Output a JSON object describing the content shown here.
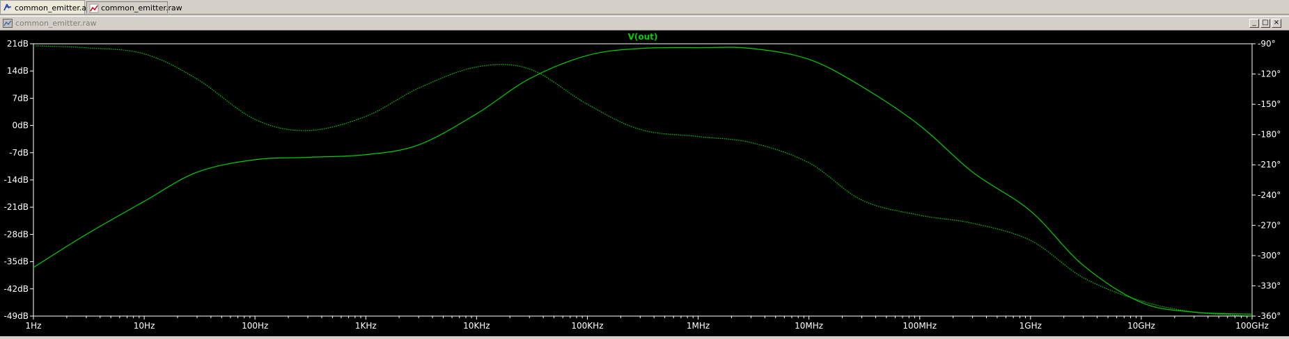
{
  "tabs": [
    {
      "label": "common_emitter.asc",
      "icon": "schematic-icon",
      "active": true
    },
    {
      "label": "common_emitter.raw",
      "icon": "waveform-icon",
      "active": false
    }
  ],
  "window": {
    "title": "common_emitter.raw",
    "minimize": "_",
    "restore": "□",
    "close": "×"
  },
  "colors": {
    "trace": "#00d000",
    "background": "#000000",
    "axis": "#ffffff",
    "title": "#00d000"
  },
  "chart_data": {
    "type": "line",
    "title": "V(out)",
    "x_scale": "log",
    "xlim": [
      1,
      100000000000
    ],
    "x_ticks": [
      {
        "value": 1,
        "label": "1Hz"
      },
      {
        "value": 10,
        "label": "10Hz"
      },
      {
        "value": 100,
        "label": "100Hz"
      },
      {
        "value": 1000,
        "label": "1KHz"
      },
      {
        "value": 10000,
        "label": "10KHz"
      },
      {
        "value": 100000,
        "label": "100KHz"
      },
      {
        "value": 1000000,
        "label": "1MHz"
      },
      {
        "value": 10000000,
        "label": "10MHz"
      },
      {
        "value": 100000000,
        "label": "100MHz"
      },
      {
        "value": 1000000000,
        "label": "1GHz"
      },
      {
        "value": 10000000000,
        "label": "10GHz"
      },
      {
        "value": 100000000000,
        "label": "100GHz"
      }
    ],
    "y_left": {
      "unit": "dB",
      "ylim": [
        -49,
        21
      ],
      "ticks": [
        "21dB",
        "14dB",
        "7dB",
        "0dB",
        "-7dB",
        "-14dB",
        "-21dB",
        "-28dB",
        "-35dB",
        "-42dB",
        "-49dB"
      ]
    },
    "y_right": {
      "unit": "deg",
      "ylim": [
        -360,
        -90
      ],
      "ticks": [
        "-90°",
        "-120°",
        "-150°",
        "-180°",
        "-210°",
        "-240°",
        "-270°",
        "-300°",
        "-330°",
        "-360°"
      ]
    },
    "grid": false,
    "series": [
      {
        "kind": "magnitude",
        "axis": "left",
        "style": "solid",
        "x": [
          1,
          3,
          10,
          30,
          100,
          300,
          1000,
          3000,
          10000,
          30000,
          100000,
          300000,
          1000000,
          3000000,
          10000000,
          30000000,
          100000000,
          300000000,
          1000000000,
          3000000000,
          10000000000,
          30000000000,
          100000000000
        ],
        "y": [
          -36.5,
          -28,
          -19.5,
          -12,
          -8.8,
          -8.2,
          -7.5,
          -5,
          3,
          12,
          18,
          19.8,
          20,
          19.8,
          17,
          10,
          0,
          -12,
          -22,
          -36,
          -45.5,
          -48,
          -48.5
        ]
      },
      {
        "kind": "phase",
        "axis": "right",
        "style": "dotted",
        "x": [
          1,
          3,
          10,
          30,
          100,
          300,
          1000,
          3000,
          10000,
          30000,
          100000,
          300000,
          1000000,
          3000000,
          10000000,
          30000000,
          100000000,
          300000000,
          1000000000,
          3000000000,
          10000000000,
          30000000000,
          100000000000
        ],
        "y": [
          -92,
          -94,
          -100,
          -125,
          -165,
          -176,
          -162,
          -134,
          -113,
          -115,
          -150,
          -175,
          -182,
          -188,
          -208,
          -245,
          -260,
          -268,
          -285,
          -322,
          -345,
          -356,
          -360
        ]
      }
    ]
  }
}
